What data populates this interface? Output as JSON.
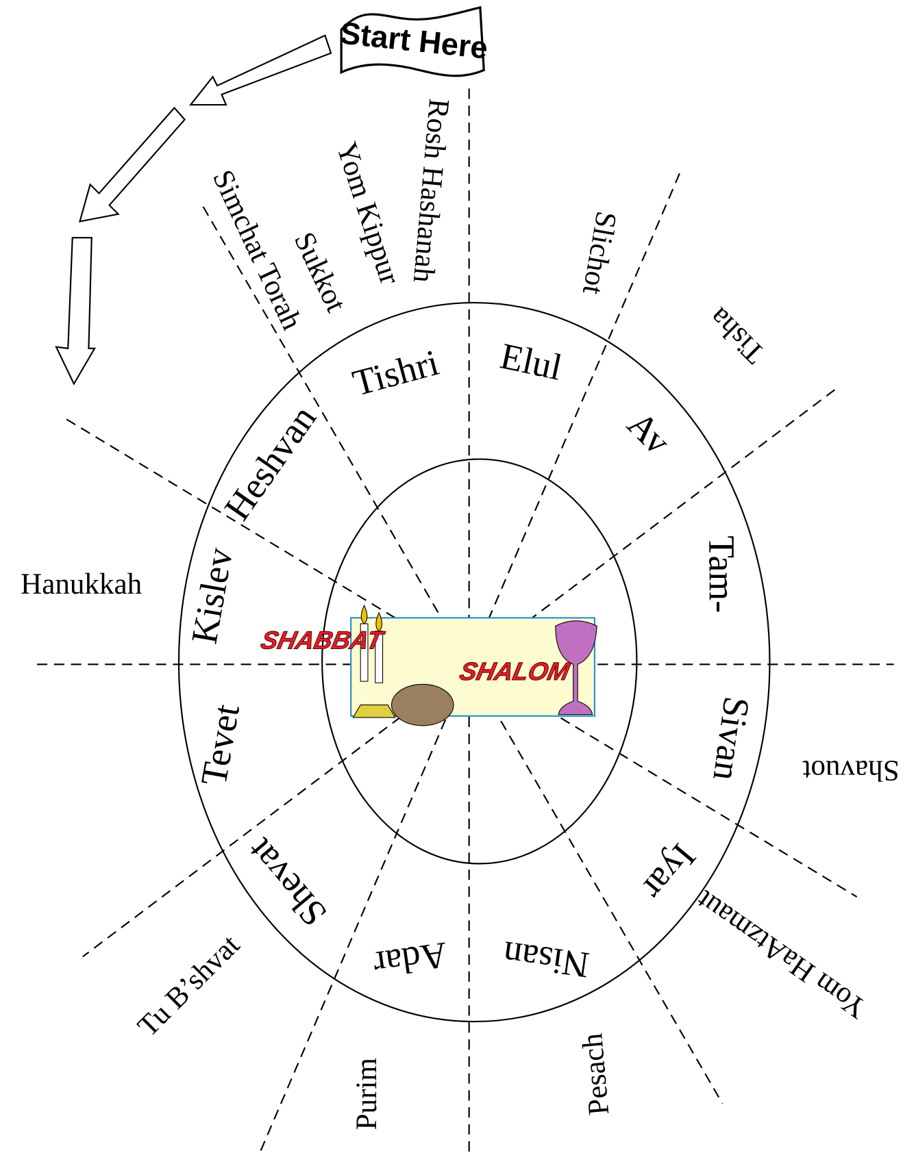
{
  "header": {
    "flag": "Start Here"
  },
  "center_badge": {
    "line1": "SHABBAT",
    "line2": "SHALOM"
  },
  "months": [
    "Tishri",
    "Elul",
    "Av",
    "Tam-",
    "Sivan",
    "Iyar",
    "Nisan",
    "Adar",
    "Shevat",
    "Tevet",
    "Kislev",
    "Heshvan"
  ],
  "holidays": [
    "Rosh Hashanah",
    "Yom Kippur",
    "Sukkot",
    "Simchat Torah",
    "Slichot",
    "Tisha",
    "Shavuot",
    "Yom HaAtzmaut",
    "Pesach",
    "Purim",
    "Tu B’shvat",
    "Hanukkah"
  ]
}
